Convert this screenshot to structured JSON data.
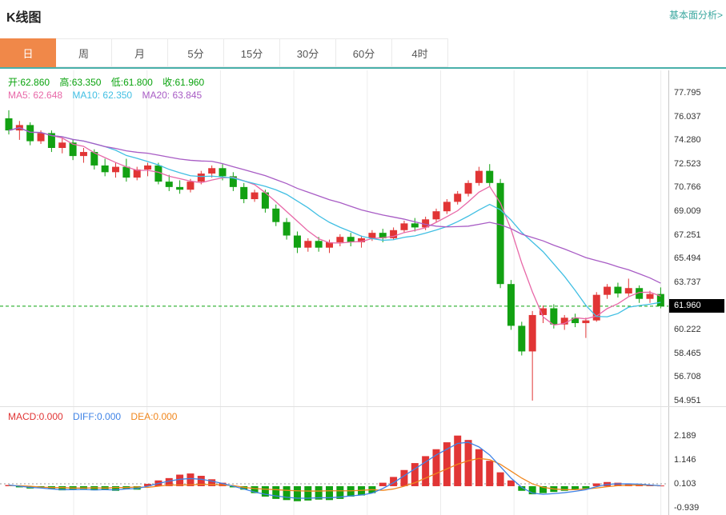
{
  "header": {
    "title": "K线图",
    "link_label": "基本面分析>"
  },
  "tabs": [
    {
      "name": "day",
      "label": "日",
      "active": true
    },
    {
      "name": "week",
      "label": "周",
      "active": false
    },
    {
      "name": "month",
      "label": "月",
      "active": false
    },
    {
      "name": "5min",
      "label": "5分",
      "active": false
    },
    {
      "name": "15min",
      "label": "15分",
      "active": false
    },
    {
      "name": "30min",
      "label": "30分",
      "active": false
    },
    {
      "name": "60min",
      "label": "60分",
      "active": false
    },
    {
      "name": "4hour",
      "label": "4时",
      "active": false
    }
  ],
  "legend": {
    "open": "开:62.860",
    "high": "高:63.350",
    "low": "低:61.800",
    "close": "收:61.960",
    "ma5": "MA5: 62.648",
    "ma10": "MA10: 62.350",
    "ma20": "MA20: 63.845"
  },
  "macd_legend": {
    "macd": "MACD:0.000",
    "diff": "DIFF:0.000",
    "dea": "DEA:0.000"
  },
  "colors": {
    "accent_orange": "#f08849",
    "teal": "#3aa79f",
    "up_red": "#e13535",
    "down_green": "#12a112",
    "ohlc_text_green": "#0aa30e",
    "ma5_pink": "#e868a8",
    "ma10_cyan": "#41bfe3",
    "ma20_purple": "#a85cc5",
    "diff_blue": "#3f83e6",
    "dea_orange": "#f0871e",
    "price_line_green": "#0aa30e",
    "badge_bg": "#000000",
    "badge_text": "#ffffff",
    "grid": "#ececec"
  },
  "chart_data": {
    "type": "candlestick",
    "title": "K线图 (日K)",
    "xlabel": "",
    "ylabel": "",
    "grid": "vertical-only",
    "legend_position": "top-left",
    "y_range": [
      54.951,
      79.5
    ],
    "current_price": 61.96,
    "current_price_label": "61.960",
    "y_axis_labels": [
      "77.795",
      "76.037",
      "74.280",
      "72.523",
      "70.766",
      "69.009",
      "67.251",
      "65.494",
      "63.737",
      "60.222",
      "58.465",
      "56.708",
      "54.951"
    ],
    "ma_periods": [
      5,
      10,
      20
    ],
    "candles": [
      [
        75.9,
        76.5,
        74.7,
        75.0
      ],
      [
        75.0,
        75.7,
        74.3,
        75.4
      ],
      [
        75.4,
        75.6,
        73.9,
        74.2
      ],
      [
        74.2,
        75.0,
        74.0,
        74.8
      ],
      [
        74.8,
        75.0,
        73.4,
        73.7
      ],
      [
        73.7,
        74.4,
        73.3,
        74.1
      ],
      [
        74.1,
        74.3,
        72.8,
        73.1
      ],
      [
        73.1,
        73.7,
        72.6,
        73.4
      ],
      [
        73.4,
        73.6,
        72.1,
        72.4
      ],
      [
        72.4,
        72.9,
        71.6,
        71.9
      ],
      [
        71.9,
        72.6,
        71.5,
        72.3
      ],
      [
        72.3,
        72.9,
        71.2,
        71.5
      ],
      [
        71.5,
        72.3,
        71.3,
        72.1
      ],
      [
        72.1,
        72.6,
        71.6,
        72.4
      ],
      [
        72.4,
        72.6,
        71.0,
        71.2
      ],
      [
        71.2,
        71.7,
        70.5,
        70.8
      ],
      [
        70.8,
        71.3,
        70.3,
        70.6
      ],
      [
        70.6,
        71.4,
        70.4,
        71.2
      ],
      [
        71.2,
        72.0,
        71.0,
        71.8
      ],
      [
        71.8,
        72.4,
        71.5,
        72.2
      ],
      [
        72.2,
        72.5,
        71.3,
        71.6
      ],
      [
        71.6,
        71.9,
        70.5,
        70.8
      ],
      [
        70.8,
        71.1,
        69.6,
        69.9
      ],
      [
        69.9,
        70.6,
        69.7,
        70.4
      ],
      [
        70.4,
        70.6,
        68.9,
        69.2
      ],
      [
        69.2,
        69.5,
        67.9,
        68.2
      ],
      [
        68.2,
        68.5,
        66.9,
        67.2
      ],
      [
        67.2,
        67.5,
        65.9,
        66.3
      ],
      [
        66.3,
        67.0,
        66.0,
        66.8
      ],
      [
        66.8,
        67.1,
        66.0,
        66.3
      ],
      [
        66.3,
        66.9,
        65.9,
        66.7
      ],
      [
        66.7,
        67.3,
        66.4,
        67.1
      ],
      [
        67.1,
        67.4,
        66.4,
        66.7
      ],
      [
        66.7,
        67.2,
        66.3,
        67.0
      ],
      [
        67.0,
        67.6,
        66.8,
        67.4
      ],
      [
        67.4,
        67.7,
        66.7,
        67.0
      ],
      [
        67.0,
        67.8,
        66.9,
        67.6
      ],
      [
        67.6,
        68.3,
        67.4,
        68.1
      ],
      [
        68.1,
        68.5,
        67.5,
        67.8
      ],
      [
        67.8,
        68.6,
        67.6,
        68.4
      ],
      [
        68.4,
        69.2,
        68.2,
        69.0
      ],
      [
        69.0,
        69.9,
        68.8,
        69.7
      ],
      [
        69.7,
        70.5,
        69.5,
        70.3
      ],
      [
        70.3,
        71.3,
        70.1,
        71.1
      ],
      [
        71.1,
        72.3,
        70.9,
        72.0
      ],
      [
        72.0,
        72.5,
        70.8,
        71.1
      ],
      [
        71.1,
        71.4,
        63.3,
        63.6
      ],
      [
        63.6,
        63.9,
        60.2,
        60.5
      ],
      [
        60.5,
        60.8,
        58.3,
        58.6
      ],
      [
        58.6,
        61.6,
        54.951,
        61.3
      ],
      [
        61.3,
        62.0,
        60.7,
        61.8
      ],
      [
        61.8,
        62.1,
        60.3,
        60.6
      ],
      [
        60.6,
        61.3,
        60.2,
        61.1
      ],
      [
        61.1,
        61.4,
        60.4,
        60.7
      ],
      [
        60.7,
        61.1,
        59.6,
        60.9
      ],
      [
        60.9,
        63.0,
        60.8,
        62.8
      ],
      [
        62.8,
        63.6,
        62.5,
        63.4
      ],
      [
        63.4,
        63.7,
        62.6,
        62.9
      ],
      [
        62.9,
        64.0,
        62.7,
        63.3
      ],
      [
        63.3,
        63.5,
        62.2,
        62.5
      ],
      [
        62.5,
        63.1,
        62.2,
        62.86
      ],
      [
        62.86,
        63.35,
        61.8,
        61.96
      ]
    ],
    "macd": {
      "type": "bar+line",
      "y_axis_labels": [
        "2.189",
        "1.146",
        "0.103",
        "-0.939"
      ],
      "y_range": [
        -0.939,
        2.189
      ],
      "hist": [
        0.05,
        -0.05,
        -0.1,
        -0.08,
        -0.12,
        -0.18,
        -0.15,
        -0.12,
        -0.18,
        -0.15,
        -0.2,
        -0.12,
        -0.15,
        0.1,
        0.25,
        0.35,
        0.5,
        0.55,
        0.45,
        0.3,
        0.15,
        -0.05,
        -0.15,
        -0.3,
        -0.45,
        -0.55,
        -0.6,
        -0.65,
        -0.62,
        -0.58,
        -0.6,
        -0.55,
        -0.45,
        -0.4,
        -0.3,
        0.15,
        0.4,
        0.7,
        1.0,
        1.3,
        1.6,
        1.9,
        2.19,
        2.0,
        1.6,
        1.1,
        0.6,
        0.25,
        -0.2,
        -0.35,
        -0.3,
        -0.25,
        -0.2,
        -0.15,
        -0.1,
        0.12,
        0.18,
        0.15,
        0.12,
        0.1,
        0.05,
        0.03
      ],
      "diff": [
        0.05,
        0.0,
        -0.05,
        -0.08,
        -0.12,
        -0.15,
        -0.15,
        -0.14,
        -0.16,
        -0.15,
        -0.16,
        -0.12,
        -0.1,
        0.0,
        0.12,
        0.22,
        0.3,
        0.33,
        0.3,
        0.22,
        0.12,
        0.0,
        -0.12,
        -0.25,
        -0.35,
        -0.42,
        -0.48,
        -0.52,
        -0.52,
        -0.5,
        -0.5,
        -0.47,
        -0.42,
        -0.38,
        -0.3,
        -0.1,
        0.15,
        0.45,
        0.75,
        1.05,
        1.35,
        1.6,
        1.85,
        1.9,
        1.7,
        1.35,
        0.85,
        0.35,
        -0.05,
        -0.3,
        -0.35,
        -0.32,
        -0.28,
        -0.22,
        -0.15,
        -0.02,
        0.08,
        0.1,
        0.1,
        0.09,
        0.05,
        0.02
      ],
      "dea": [
        0.02,
        0.02,
        0.0,
        -0.04,
        -0.06,
        -0.06,
        -0.08,
        -0.08,
        -0.07,
        -0.08,
        -0.06,
        -0.06,
        -0.03,
        -0.05,
        0.0,
        0.05,
        0.05,
        0.06,
        0.08,
        0.07,
        0.05,
        0.03,
        -0.05,
        -0.1,
        -0.13,
        -0.15,
        -0.18,
        -0.2,
        -0.21,
        -0.21,
        -0.2,
        -0.2,
        -0.2,
        -0.18,
        -0.15,
        -0.18,
        -0.12,
        0.0,
        0.15,
        0.35,
        0.55,
        0.75,
        0.95,
        1.1,
        1.2,
        1.15,
        0.95,
        0.65,
        0.35,
        0.1,
        -0.05,
        -0.12,
        -0.15,
        -0.15,
        -0.12,
        -0.08,
        -0.02,
        0.02,
        0.04,
        0.05,
        0.04,
        0.02
      ]
    }
  }
}
